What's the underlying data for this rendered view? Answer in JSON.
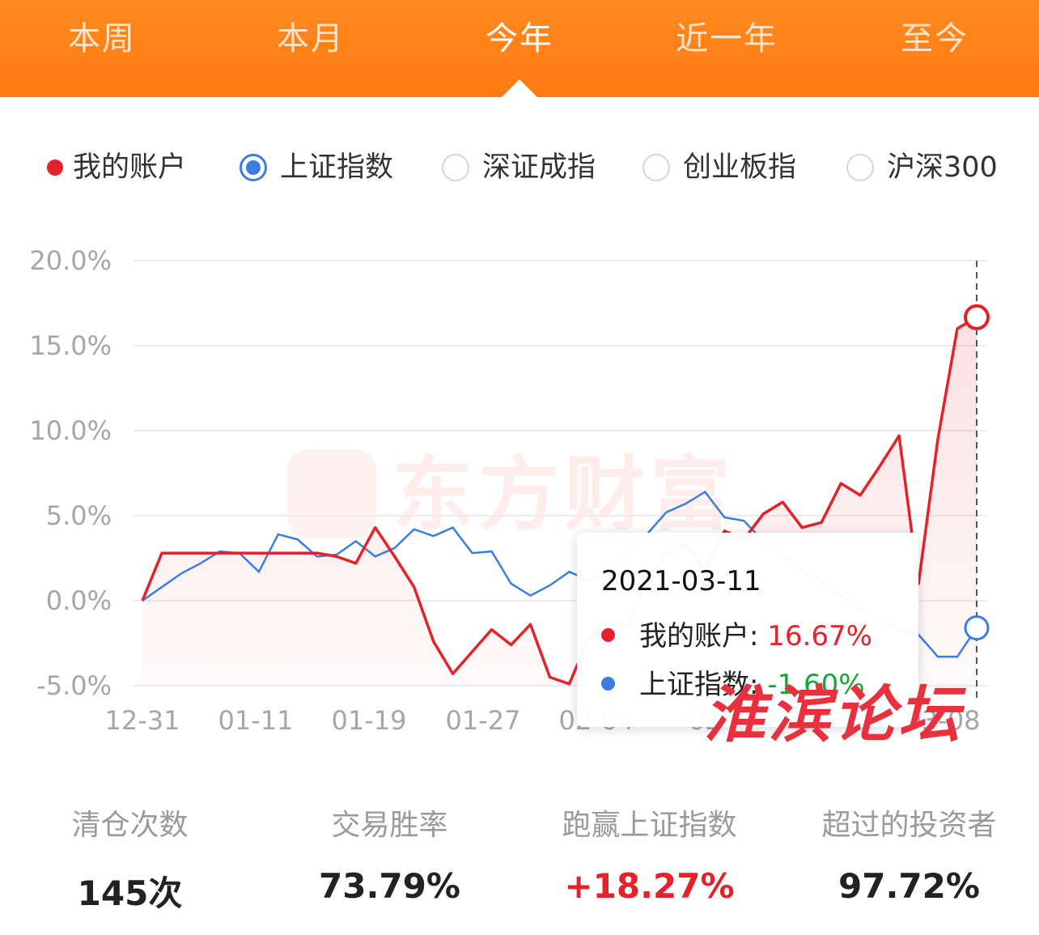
{
  "tabs": [
    {
      "label": "本周",
      "active": false
    },
    {
      "label": "本月",
      "active": false
    },
    {
      "label": "今年",
      "active": true
    },
    {
      "label": "近一年",
      "active": false
    },
    {
      "label": "至今",
      "active": false
    }
  ],
  "legend": [
    {
      "label": "我的账户",
      "type": "dot",
      "color": "#e5222a",
      "selected": true
    },
    {
      "label": "上证指数",
      "type": "radio",
      "selected": true
    },
    {
      "label": "深证成指",
      "type": "radio",
      "selected": false
    },
    {
      "label": "创业板指",
      "type": "radio",
      "selected": false
    },
    {
      "label": "沪深300",
      "type": "radio",
      "selected": false
    }
  ],
  "chart_data": {
    "type": "line",
    "yticks": [
      "20.0%",
      "15.0%",
      "10.0%",
      "5.0%",
      "0.0%",
      "-5.0%"
    ],
    "ylim": [
      -5,
      20
    ],
    "xticks": [
      "12-31",
      "01-11",
      "01-19",
      "01-27",
      "02-04",
      "02-",
      "",
      "03-08"
    ],
    "grid": true,
    "series": [
      {
        "name": "我的账户",
        "color": "#e5222a",
        "values": [
          0.0,
          2.8,
          2.8,
          2.8,
          2.8,
          2.8,
          2.8,
          2.8,
          2.8,
          2.8,
          2.6,
          2.2,
          4.3,
          2.6,
          0.8,
          -2.4,
          -4.3,
          -3.0,
          -1.7,
          -2.6,
          -1.4,
          -4.5,
          -4.9,
          -2.2,
          -1.3,
          -1.6,
          1.2,
          2.7,
          3.3,
          1.8,
          4.1,
          3.6,
          5.1,
          5.8,
          4.3,
          4.6,
          6.9,
          6.2,
          7.9,
          9.7,
          1.0,
          9.5,
          16.0,
          16.67
        ]
      },
      {
        "name": "上证指数",
        "color": "#3b7de0",
        "values": [
          0.0,
          0.8,
          1.6,
          2.2,
          2.9,
          2.8,
          1.7,
          3.9,
          3.6,
          2.6,
          2.7,
          3.5,
          2.6,
          3.1,
          4.2,
          3.8,
          4.3,
          2.8,
          2.9,
          1.0,
          0.3,
          0.9,
          1.7,
          1.2,
          1.7,
          2.9,
          3.9,
          5.2,
          5.7,
          6.4,
          4.9,
          4.7,
          3.5,
          2.6,
          1.8,
          1.1,
          0.3,
          -0.5,
          -1.1,
          -1.7,
          -2.0,
          -3.3,
          -3.3,
          -1.6
        ]
      }
    ]
  },
  "tooltip": {
    "date": "2021-03-11",
    "rows": [
      {
        "name": "我的账户",
        "value": "16.67%",
        "dot_color": "#e5222a"
      },
      {
        "name": "上证指数",
        "value": "-1.60%",
        "dot_color": "#3b7de0"
      }
    ]
  },
  "watermarks": {
    "brand": "东方财富",
    "forum": "淮滨论坛"
  },
  "stats": [
    {
      "label": "清仓次数",
      "value": "145次"
    },
    {
      "label": "交易胜率",
      "value": "73.79%"
    },
    {
      "label": "跑赢上证指数",
      "value": "+18.27%"
    },
    {
      "label": "超过的投资者",
      "value": "97.72%"
    }
  ]
}
